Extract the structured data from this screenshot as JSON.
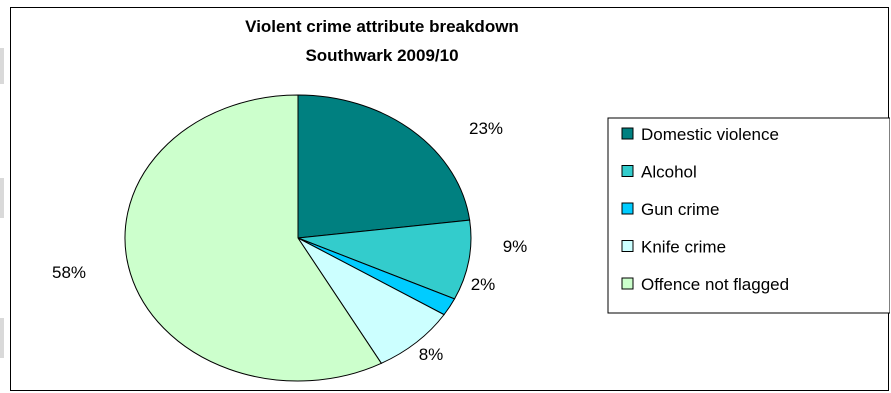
{
  "chart_data": {
    "type": "pie",
    "title": "Violent crime attribute breakdown",
    "subtitle": "Southwark 2009/10",
    "legend_position": "right",
    "slices": [
      {
        "label": "Domestic violence",
        "value": 23,
        "display": "23%",
        "color": "#008080"
      },
      {
        "label": "Alcohol",
        "value": 9,
        "display": "9%",
        "color": "#33cccc"
      },
      {
        "label": "Gun crime",
        "value": 2,
        "display": "2%",
        "color": "#00ccff"
      },
      {
        "label": "Knife crime",
        "value": 8,
        "display": "8%",
        "color": "#ccffff"
      },
      {
        "label": "Offence not flagged",
        "value": 58,
        "display": "58%",
        "color": "#ccffcc"
      }
    ]
  }
}
